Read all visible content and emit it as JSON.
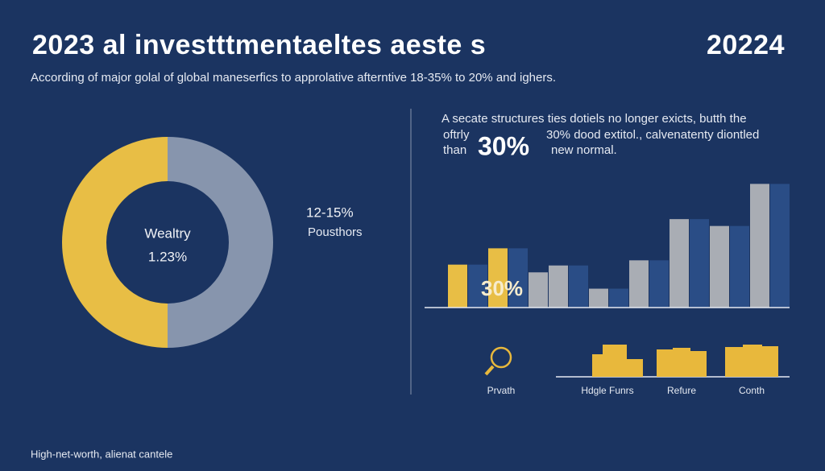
{
  "header": {
    "title": "2023 al investttmentaeltes aeste s",
    "year": "20224",
    "subtitle": "According of major golal of global maneserfics to approlative afterntive 18-35% to 20% and ighers."
  },
  "chart_data": [
    {
      "type": "pie",
      "donut": true,
      "values": [
        50,
        50
      ],
      "colors": [
        "#e8be45",
        "#8795ad"
      ],
      "center_text": [
        "Wealtry",
        "1.23%"
      ],
      "side_text": [
        "12-15%",
        "Pousthors"
      ]
    },
    {
      "type": "bar",
      "categories": [
        null,
        null,
        null,
        null,
        null,
        null,
        null,
        null,
        null,
        null,
        null,
        null,
        null,
        null,
        null,
        null,
        null
      ],
      "values": [
        50,
        50,
        69,
        69,
        41,
        49,
        49,
        22,
        22,
        55,
        55,
        103,
        103,
        95,
        95,
        144,
        144
      ],
      "colors": [
        "#e8be45",
        "#2a4d86",
        "#e8be45",
        "#2a4d86",
        "#a9adb4",
        "#a9adb4",
        "#2a4d86",
        "#a9adb4",
        "#2a4d86",
        "#a9adb4",
        "#2a4d86",
        "#a9adb4",
        "#2a4d86",
        "#a9adb4",
        "#2a4d86",
        "#a9adb4",
        "#2a4d86"
      ],
      "ylim": [
        0,
        150
      ],
      "annotation": "30%"
    }
  ],
  "callout": {
    "line1": "A secate structures ties dotiels no longer exicts, butth the",
    "left1": "oftrly",
    "left2": "than",
    "big": "30%",
    "right1": "30% dood extitol., calvenatenty diontled",
    "right2": "new normal."
  },
  "icons": [
    "Prvath",
    "Hdgle Funrs",
    "Refure",
    "Conth"
  ],
  "footer": "High-net-worth, alienat cantele"
}
